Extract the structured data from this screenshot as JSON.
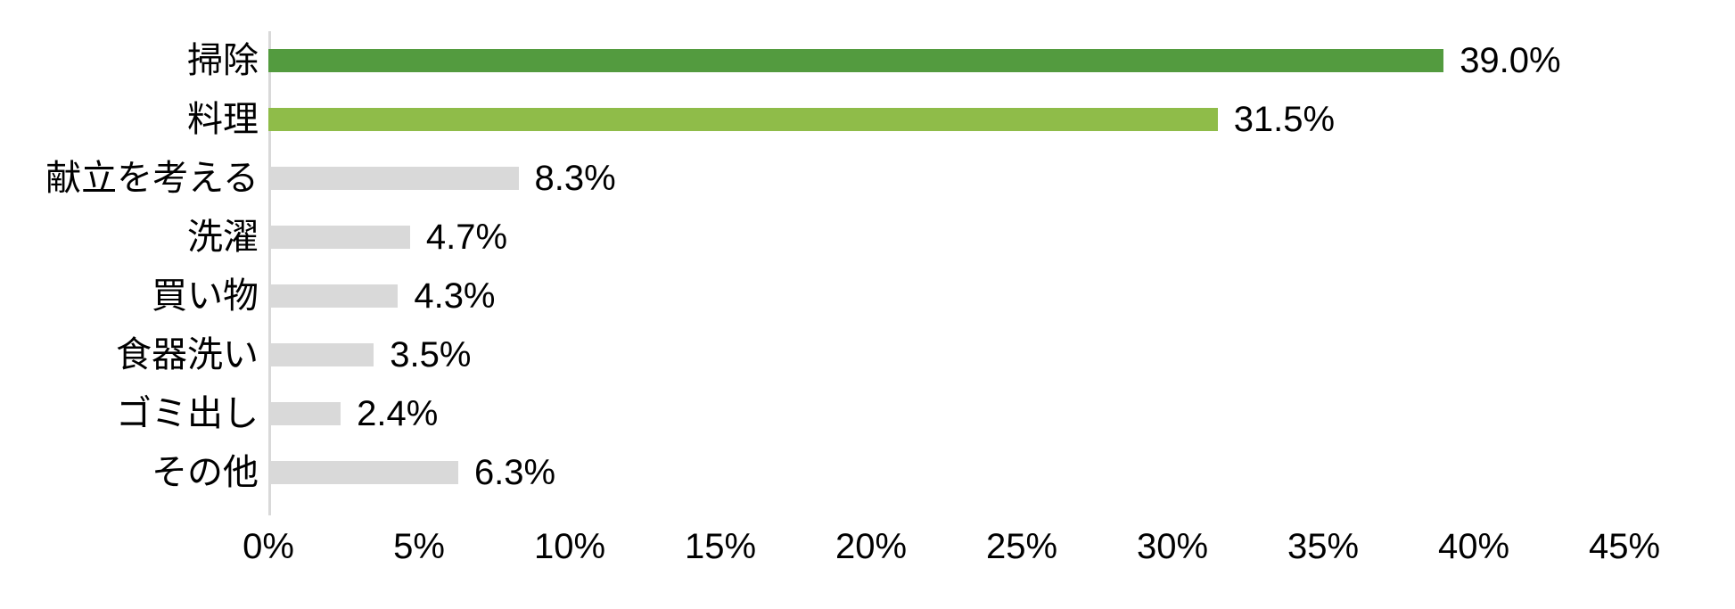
{
  "chart_data": {
    "type": "bar",
    "orientation": "horizontal",
    "title": "",
    "xlabel": "",
    "ylabel": "",
    "grid": false,
    "legend": false,
    "background": "#ffffff",
    "text_color": "#000000",
    "axis_line_color": "#d9d9d9",
    "categories": [
      "掃除",
      "料理",
      "献立を考える",
      "洗濯",
      "買い物",
      "食器洗い",
      "ゴミ出し",
      "その他"
    ],
    "values": [
      39.0,
      31.5,
      8.3,
      4.7,
      4.3,
      3.5,
      2.4,
      6.3
    ],
    "value_labels": [
      "39.0%",
      "31.5%",
      "8.3%",
      "4.7%",
      "4.3%",
      "3.5%",
      "2.4%",
      "6.3%"
    ],
    "bar_colors": [
      "#539b3f",
      "#8fbc49",
      "#d9d9d9",
      "#d9d9d9",
      "#d9d9d9",
      "#d9d9d9",
      "#d9d9d9",
      "#d9d9d9"
    ],
    "xlim": [
      0,
      45
    ],
    "x_ticks": [
      "0%",
      "5%",
      "10%",
      "15%",
      "20%",
      "25%",
      "30%",
      "35%",
      "40%",
      "45%"
    ],
    "x_tick_values": [
      0,
      5,
      10,
      15,
      20,
      25,
      30,
      35,
      40,
      45
    ]
  }
}
